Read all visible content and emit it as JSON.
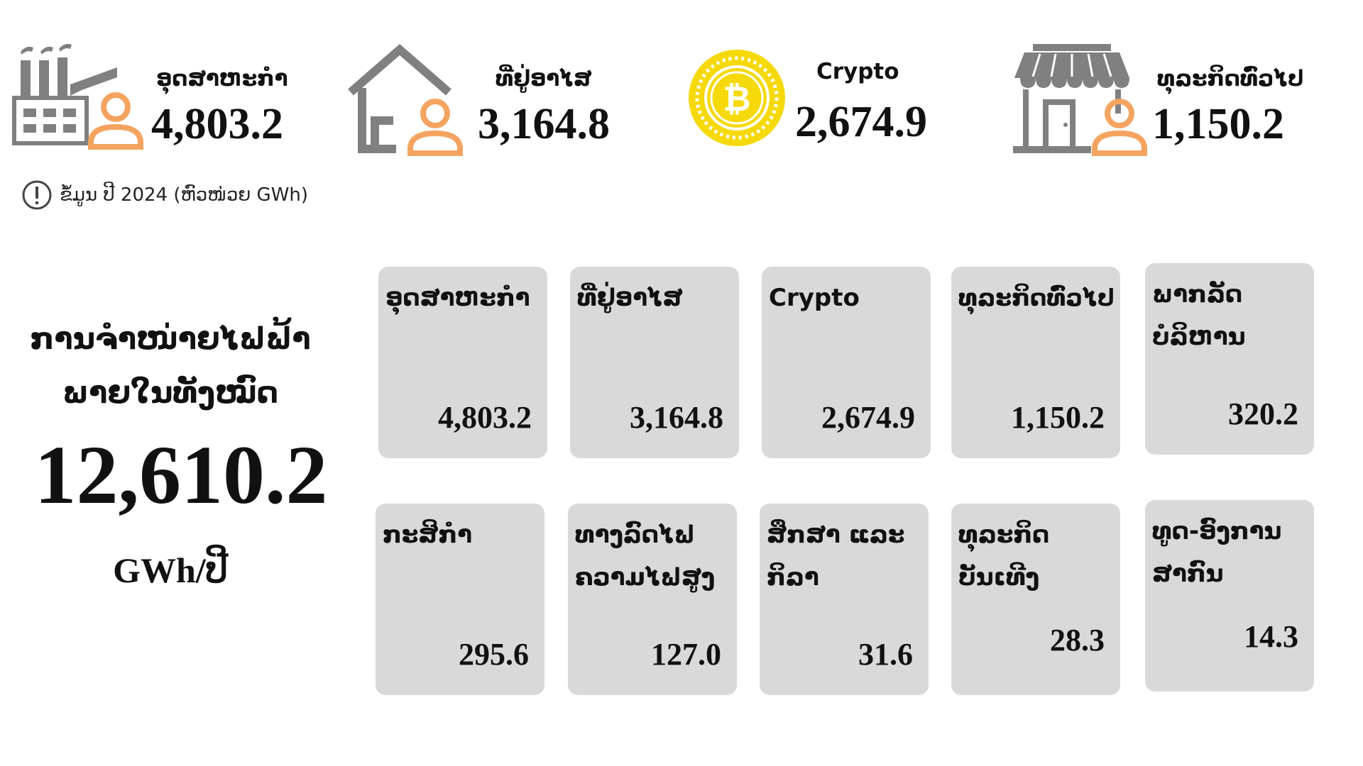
{
  "summary": [
    {
      "label": "ອຸດສາຫະກຳ",
      "value": "4,803.2",
      "icon": "factory-person-icon"
    },
    {
      "label": "ທີ່ຢູ່ອາໄສ",
      "value": "3,164.8",
      "icon": "house-person-icon"
    },
    {
      "label": "Crypto",
      "value": "2,674.9",
      "icon": "bitcoin-coin-icon"
    },
    {
      "label": "ທຸລະກິດທົ່ວໄປ",
      "value": "1,150.2",
      "icon": "store-person-icon"
    }
  ],
  "note": "ຂໍ້ມູນ ປີ 2024 (ຫົວໜ່ວຍ GWh)",
  "total": {
    "title_line1": "ການຈຳໜ່າຍໄຟຟ້າ",
    "title_line2": "ພາຍໃນທັງໝົດ",
    "value": "12,610.2",
    "unit": "GWh/ປີ"
  },
  "colors": {
    "icon_gray": "#808080",
    "person_orange": "#f4a460",
    "coin_yellow": "#f5d90a",
    "card_gray": "#d9d9d9"
  },
  "chart_data": {
    "type": "table",
    "unit": "GWh",
    "year": "2024",
    "categories": [
      "ອຸດສາຫະກຳ",
      "ທີ່ຢູ່ອາໄສ",
      "Crypto",
      "ທຸລະກິດທົ່ວໄປ",
      "ພາກລັດ ບໍລິຫານ",
      "ກະສິກຳ",
      "ທາງລົດໄຟ ຄວາມໄຟສູງ",
      "ສຶກສາ ແລະ ກິລາ",
      "ທຸລະກິດ ບັນເທີງ",
      "ທູດ-ອົງການ ສາກົນ"
    ],
    "values": [
      4803.2,
      3164.8,
      2674.9,
      1150.2,
      320.2,
      295.6,
      127.0,
      31.6,
      28.3,
      14.3
    ],
    "cards": [
      {
        "label": "ອຸດສາຫະກຳ",
        "value": "4,803.2"
      },
      {
        "label": "ທີ່ຢູ່ອາໄສ",
        "value": "3,164.8"
      },
      {
        "label": "Crypto",
        "value": "2,674.9"
      },
      {
        "label": "ທຸລະກິດທົ່ວໄປ",
        "value": "1,150.2"
      },
      {
        "label": "ພາກລັດ\nບໍລິຫານ",
        "value": "320.2"
      },
      {
        "label": "ກະສິກຳ",
        "value": "295.6"
      },
      {
        "label": "ທາງລົດໄຟ\nຄວາມໄຟສູງ",
        "value": "127.0"
      },
      {
        "label": "ສຶກສາ ແລະ\nກິລາ",
        "value": "31.6"
      },
      {
        "label": "ທຸລະກິດ\nບັນເທີງ",
        "value": "28.3"
      },
      {
        "label": "ທູດ-ອົງການ\nສາກົນ",
        "value": "14.3"
      }
    ],
    "total": 12610.2
  }
}
